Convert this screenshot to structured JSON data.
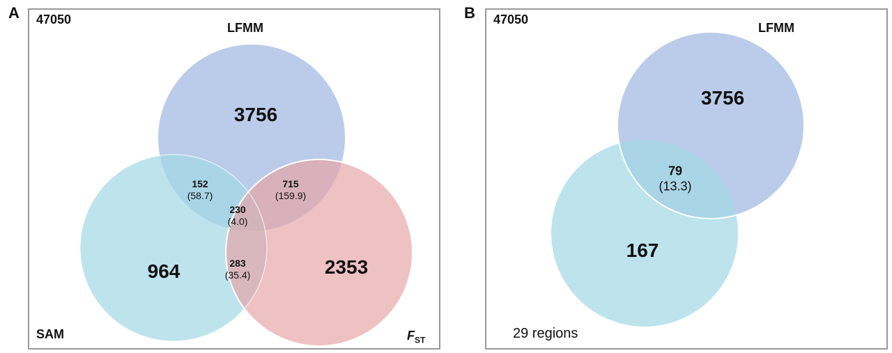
{
  "panel_a": {
    "letter": "A",
    "total": "47050",
    "sets": {
      "lfmm": "LFMM",
      "sam": "SAM",
      "fst_main": "F",
      "fst_sub": "ST"
    },
    "regions": {
      "lfmm_only": "3756",
      "sam_only": "964",
      "fst_only": "2353",
      "lfmm_sam": {
        "count": "152",
        "expected": "(58.7)"
      },
      "lfmm_fst": {
        "count": "715",
        "expected": "(159.9)"
      },
      "sam_fst": {
        "count": "283",
        "expected": "(35.4)"
      },
      "all_three": {
        "count": "230",
        "expected": "(4.0)"
      }
    }
  },
  "panel_b": {
    "letter": "B",
    "total": "47050",
    "sets": {
      "lfmm": "LFMM"
    },
    "regions": {
      "lfmm_only": "3756",
      "other_only": "167",
      "overlap": {
        "count": "79",
        "expected": "(13.3)"
      }
    },
    "footer": "29 regions"
  },
  "colors": {
    "lfmm": "#9fb8e0",
    "sam": "#a3d8e6",
    "fst": "#e6a3a6",
    "frame": "#999999"
  }
}
